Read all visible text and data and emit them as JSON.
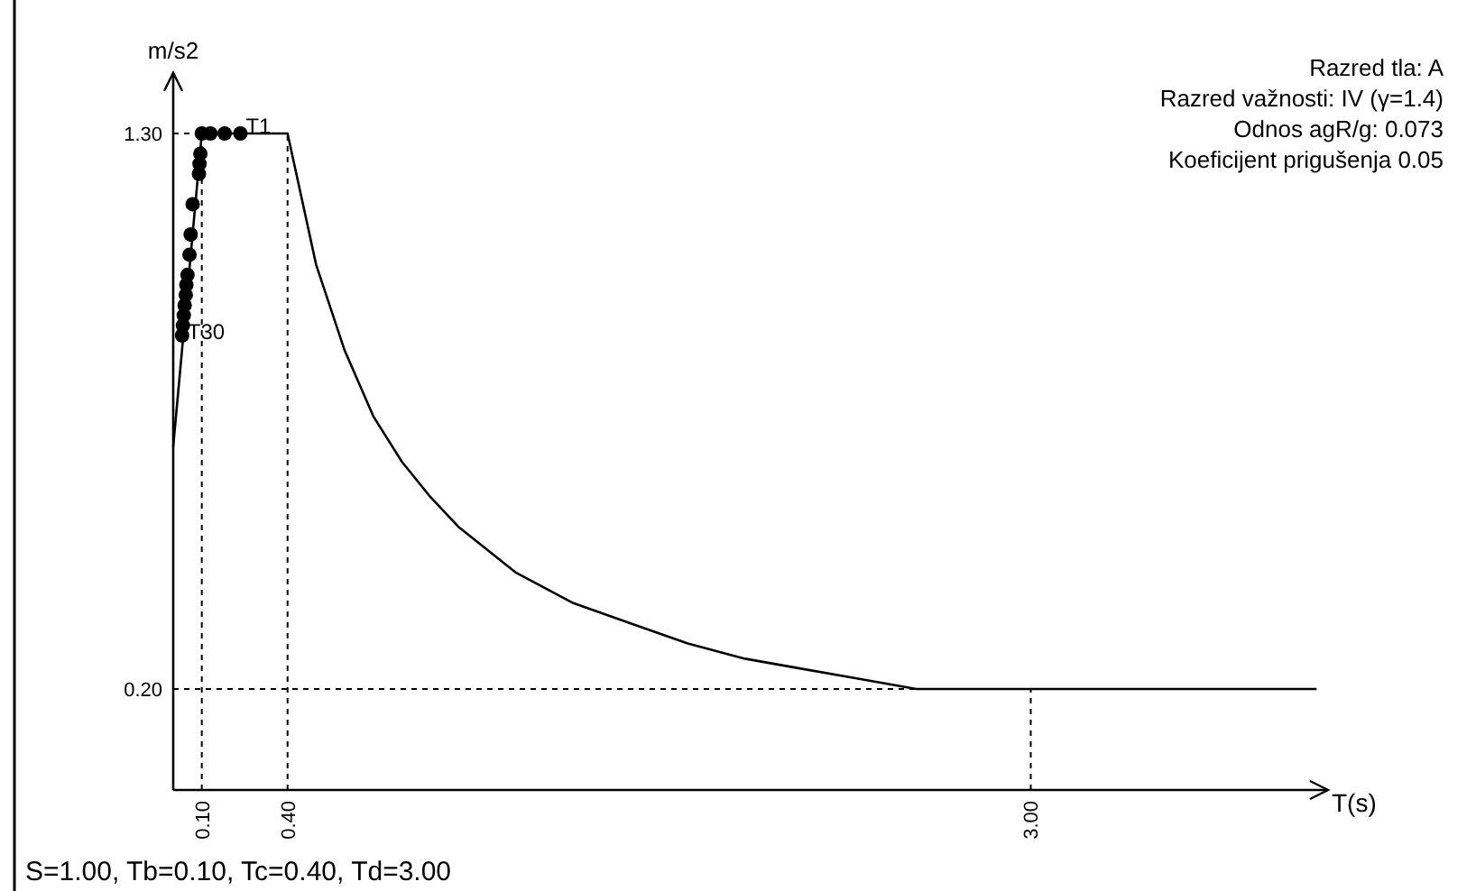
{
  "chart_data": {
    "type": "line",
    "xlabel": "T(s)",
    "ylabel": "m/s2",
    "xlim": [
      0,
      4.04
    ],
    "ylim": [
      0,
      1.42
    ],
    "xticks": [
      {
        "value": 0.1,
        "label": "0.10"
      },
      {
        "value": 0.4,
        "label": "0.40"
      },
      {
        "value": 3.0,
        "label": "3.00"
      }
    ],
    "yticks": [
      {
        "value": 0.2,
        "label": "0.20"
      },
      {
        "value": 1.3,
        "label": "1.30"
      }
    ],
    "series": [
      {
        "color": "#000000",
        "x": [
          0,
          0.1,
          0.4,
          0.5,
          0.6,
          0.7,
          0.8,
          0.9,
          1.0,
          1.2,
          1.4,
          1.6,
          1.8,
          2.0,
          2.2,
          2.4,
          2.6,
          3.0,
          4.0
        ],
        "values": [
          0.68,
          1.3,
          1.3,
          1.04,
          0.87,
          0.74,
          0.65,
          0.58,
          0.52,
          0.43,
          0.37,
          0.33,
          0.29,
          0.26,
          0.24,
          0.22,
          0.2,
          0.2,
          0.2
        ]
      },
      {
        "type": "scatter",
        "color": "#000000",
        "marker": "circle",
        "x": [
          0.1,
          0.13,
          0.18,
          0.235,
          0.095,
          0.092,
          0.09,
          0.068,
          0.061,
          0.057,
          0.05,
          0.046,
          0.044,
          0.04,
          0.037,
          0.034,
          0.031
        ],
        "values": [
          1.3,
          1.3,
          1.3,
          1.3,
          1.26,
          1.24,
          1.22,
          1.16,
          1.1,
          1.06,
          1.02,
          1.0,
          0.98,
          0.96,
          0.94,
          0.92,
          0.9
        ]
      }
    ],
    "ref_lines": [
      {
        "axis": "x",
        "value": 0.1,
        "line_style": "dotted"
      },
      {
        "axis": "x",
        "value": 0.4,
        "line_style": "dotted"
      },
      {
        "axis": "x",
        "value": 3.0,
        "line_style": "dotted"
      },
      {
        "axis": "y",
        "value": 1.3,
        "line_style": "dotted"
      },
      {
        "axis": "y",
        "value": 0.2,
        "line_style": "dotted"
      }
    ],
    "annotations": [
      {
        "text": "T1",
        "x": 0.235,
        "y": 1.3
      },
      {
        "text": "T30",
        "x": 0.031,
        "y": 0.9
      },
      "Razred tla: A",
      "Razred važnosti: IV (γ=1.4)",
      "Odnos agR/g: 0.073",
      "Koeficijent prigušenja 0.05",
      "S=1.00, Tb=0.10, Tc=0.40, Td=3.00"
    ]
  }
}
